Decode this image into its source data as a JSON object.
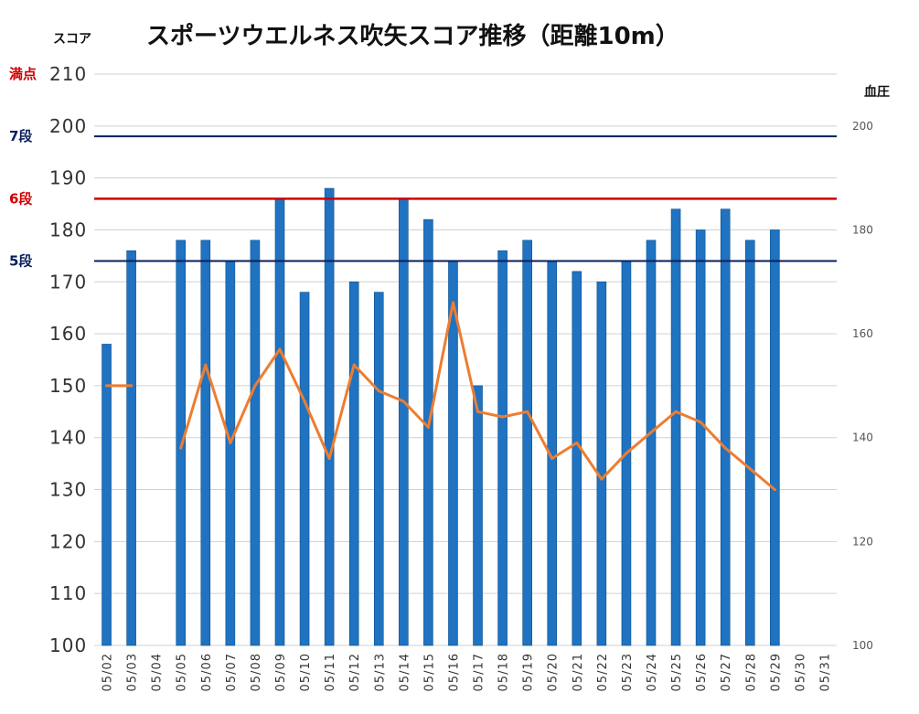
{
  "chart_data": {
    "type": "bar",
    "title": "スポーツウエルネス吹矢スコア推移（距離10m）",
    "ylabel": "スコア",
    "y2label": "血圧",
    "ylim": [
      100,
      210
    ],
    "yticks": [
      100,
      110,
      120,
      130,
      140,
      150,
      160,
      170,
      180,
      190,
      200,
      210
    ],
    "y2lim": [
      100,
      210
    ],
    "y2ticks": [
      100,
      120,
      140,
      160,
      180,
      200
    ],
    "grid": true,
    "categories": [
      "05/02",
      "05/03",
      "05/04",
      "05/05",
      "05/06",
      "05/07",
      "05/08",
      "05/09",
      "05/10",
      "05/11",
      "05/12",
      "05/13",
      "05/14",
      "05/15",
      "05/16",
      "05/17",
      "05/18",
      "05/19",
      "05/20",
      "05/21",
      "05/22",
      "05/23",
      "05/24",
      "05/25",
      "05/26",
      "05/27",
      "05/28",
      "05/29",
      "05/30",
      "05/31"
    ],
    "series": [
      {
        "type": "bar",
        "axis": "left",
        "color": "#1f73c1",
        "values": [
          158,
          176,
          null,
          178,
          178,
          174,
          178,
          186,
          168,
          188,
          170,
          168,
          186,
          182,
          174,
          150,
          176,
          178,
          174,
          172,
          170,
          174,
          178,
          184,
          180,
          184,
          178,
          180,
          null,
          null
        ]
      },
      {
        "type": "line",
        "axis": "right",
        "color": "#ed7d31",
        "values": [
          150,
          150,
          null,
          138,
          154,
          139,
          150,
          157,
          147,
          136,
          154,
          149,
          147,
          142,
          166,
          145,
          144,
          145,
          136,
          139,
          132,
          137,
          141,
          145,
          143,
          138,
          134,
          130,
          null,
          null
        ]
      }
    ],
    "reference_lines": [
      {
        "label": "満点",
        "value": 210,
        "color": "#d00000",
        "line": false
      },
      {
        "label": "7段",
        "value": 198,
        "color": "#0a1f5c",
        "line": true
      },
      {
        "label": "6段",
        "value": 186,
        "color": "#d00000",
        "line": true
      },
      {
        "label": "5段",
        "value": 174,
        "color": "#0a1f5c",
        "line": true
      }
    ],
    "grid_color": "#d0d0d0"
  }
}
